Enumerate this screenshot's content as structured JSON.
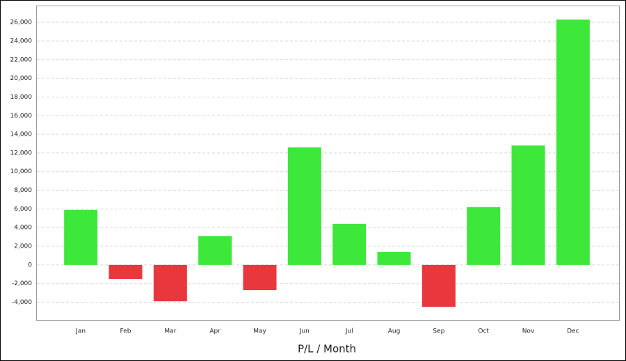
{
  "chart_data": {
    "type": "bar",
    "x_label": "P/L / Month",
    "categories": [
      "Jan",
      "Feb",
      "Mar",
      "Apr",
      "May",
      "Jun",
      "Jul",
      "Aug",
      "Sep",
      "Oct",
      "Nov",
      "Dec"
    ],
    "values": [
      5900,
      -1500,
      -3900,
      3100,
      -2700,
      12600,
      4400,
      1400,
      -4500,
      6200,
      12800,
      26300
    ],
    "positive_color": "#3de83b",
    "negative_color": "#e8383d",
    "ylim": [
      -5900,
      27800
    ],
    "yticks": [
      {
        "value": -4000,
        "label": "-4,000"
      },
      {
        "value": -2000,
        "label": "-2,000"
      },
      0,
      {
        "value": 2000,
        "label": "2,000"
      },
      {
        "value": 4000,
        "label": "4,000"
      },
      {
        "value": 6000,
        "label": "6,000"
      },
      {
        "value": 8000,
        "label": "8,000"
      },
      {
        "value": 10000,
        "label": "10,000"
      },
      {
        "value": 12000,
        "label": "12,000"
      },
      {
        "value": 14000,
        "label": "14,000"
      },
      {
        "value": 16000,
        "label": "16,000"
      },
      {
        "value": 18000,
        "label": "18,000"
      },
      {
        "value": 20000,
        "label": "20,000"
      },
      {
        "value": 22000,
        "label": "22,000"
      },
      {
        "value": 24000,
        "label": "24,000"
      },
      {
        "value": 26000,
        "label": "26,000"
      }
    ],
    "grid": true
  }
}
